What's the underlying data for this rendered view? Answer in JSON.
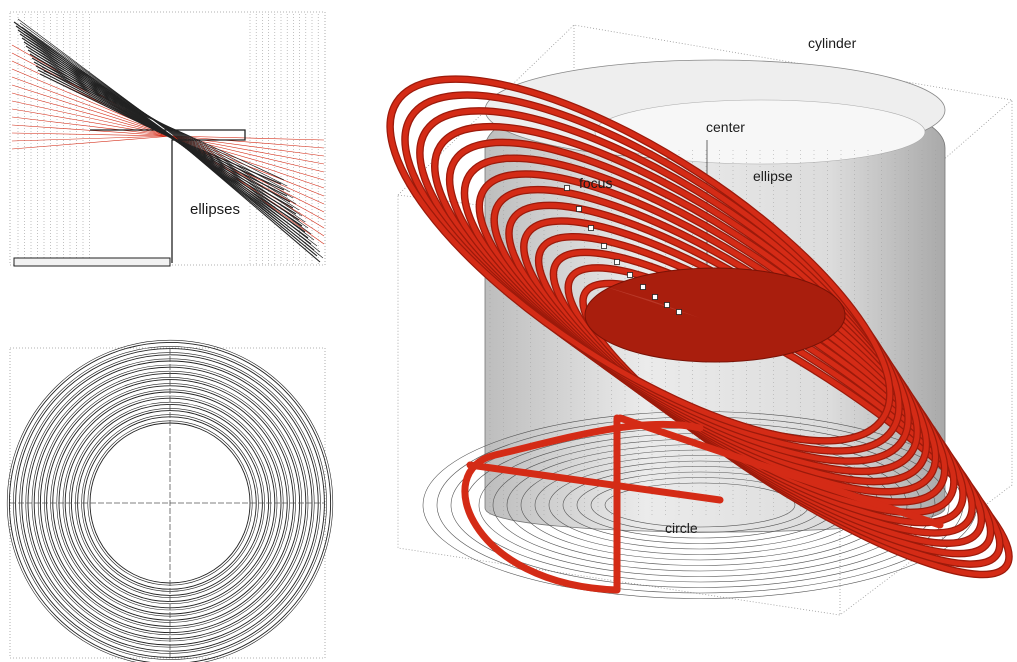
{
  "labels": {
    "ellipses": "ellipses",
    "cylinder": "cylinder",
    "center": "center",
    "ellipse": "ellipse",
    "focus": "focus",
    "circle": "circle"
  },
  "colors": {
    "red": "#d42b16",
    "red_dark": "#9c1a0b",
    "line": "#222222",
    "grey": "#dcdcdc",
    "dotted": "#9a9a9a"
  },
  "ring_count": 14
}
